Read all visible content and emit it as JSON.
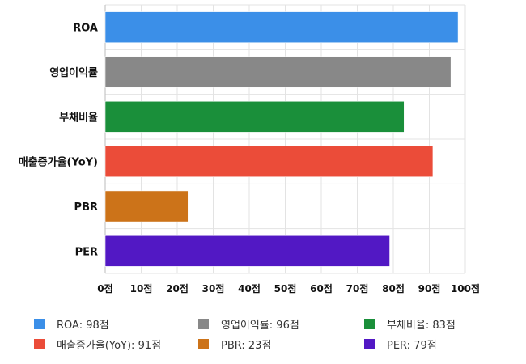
{
  "chart_data": {
    "type": "bar",
    "orientation": "horizontal",
    "categories": [
      "ROA",
      "영업이익률",
      "부채비율",
      "매출증가율(YoY)",
      "PBR",
      "PER"
    ],
    "values": [
      98,
      96,
      83,
      91,
      23,
      79
    ],
    "colors": [
      "#3b8fe8",
      "#888888",
      "#1a8f3a",
      "#eb4c39",
      "#cc7319",
      "#5218c4"
    ],
    "xlim": [
      0,
      100
    ],
    "xticks": [
      "0점",
      "10점",
      "20점",
      "30점",
      "40점",
      "50점",
      "60점",
      "70점",
      "80점",
      "90점",
      "100점"
    ],
    "grid": true,
    "legend_position": "bottom",
    "legend": [
      "ROA: 98점",
      "영업이익률: 96점",
      "부채비율: 83점",
      "매출증가율(YoY): 91점",
      "PBR: 23점",
      "PER: 79점"
    ]
  }
}
